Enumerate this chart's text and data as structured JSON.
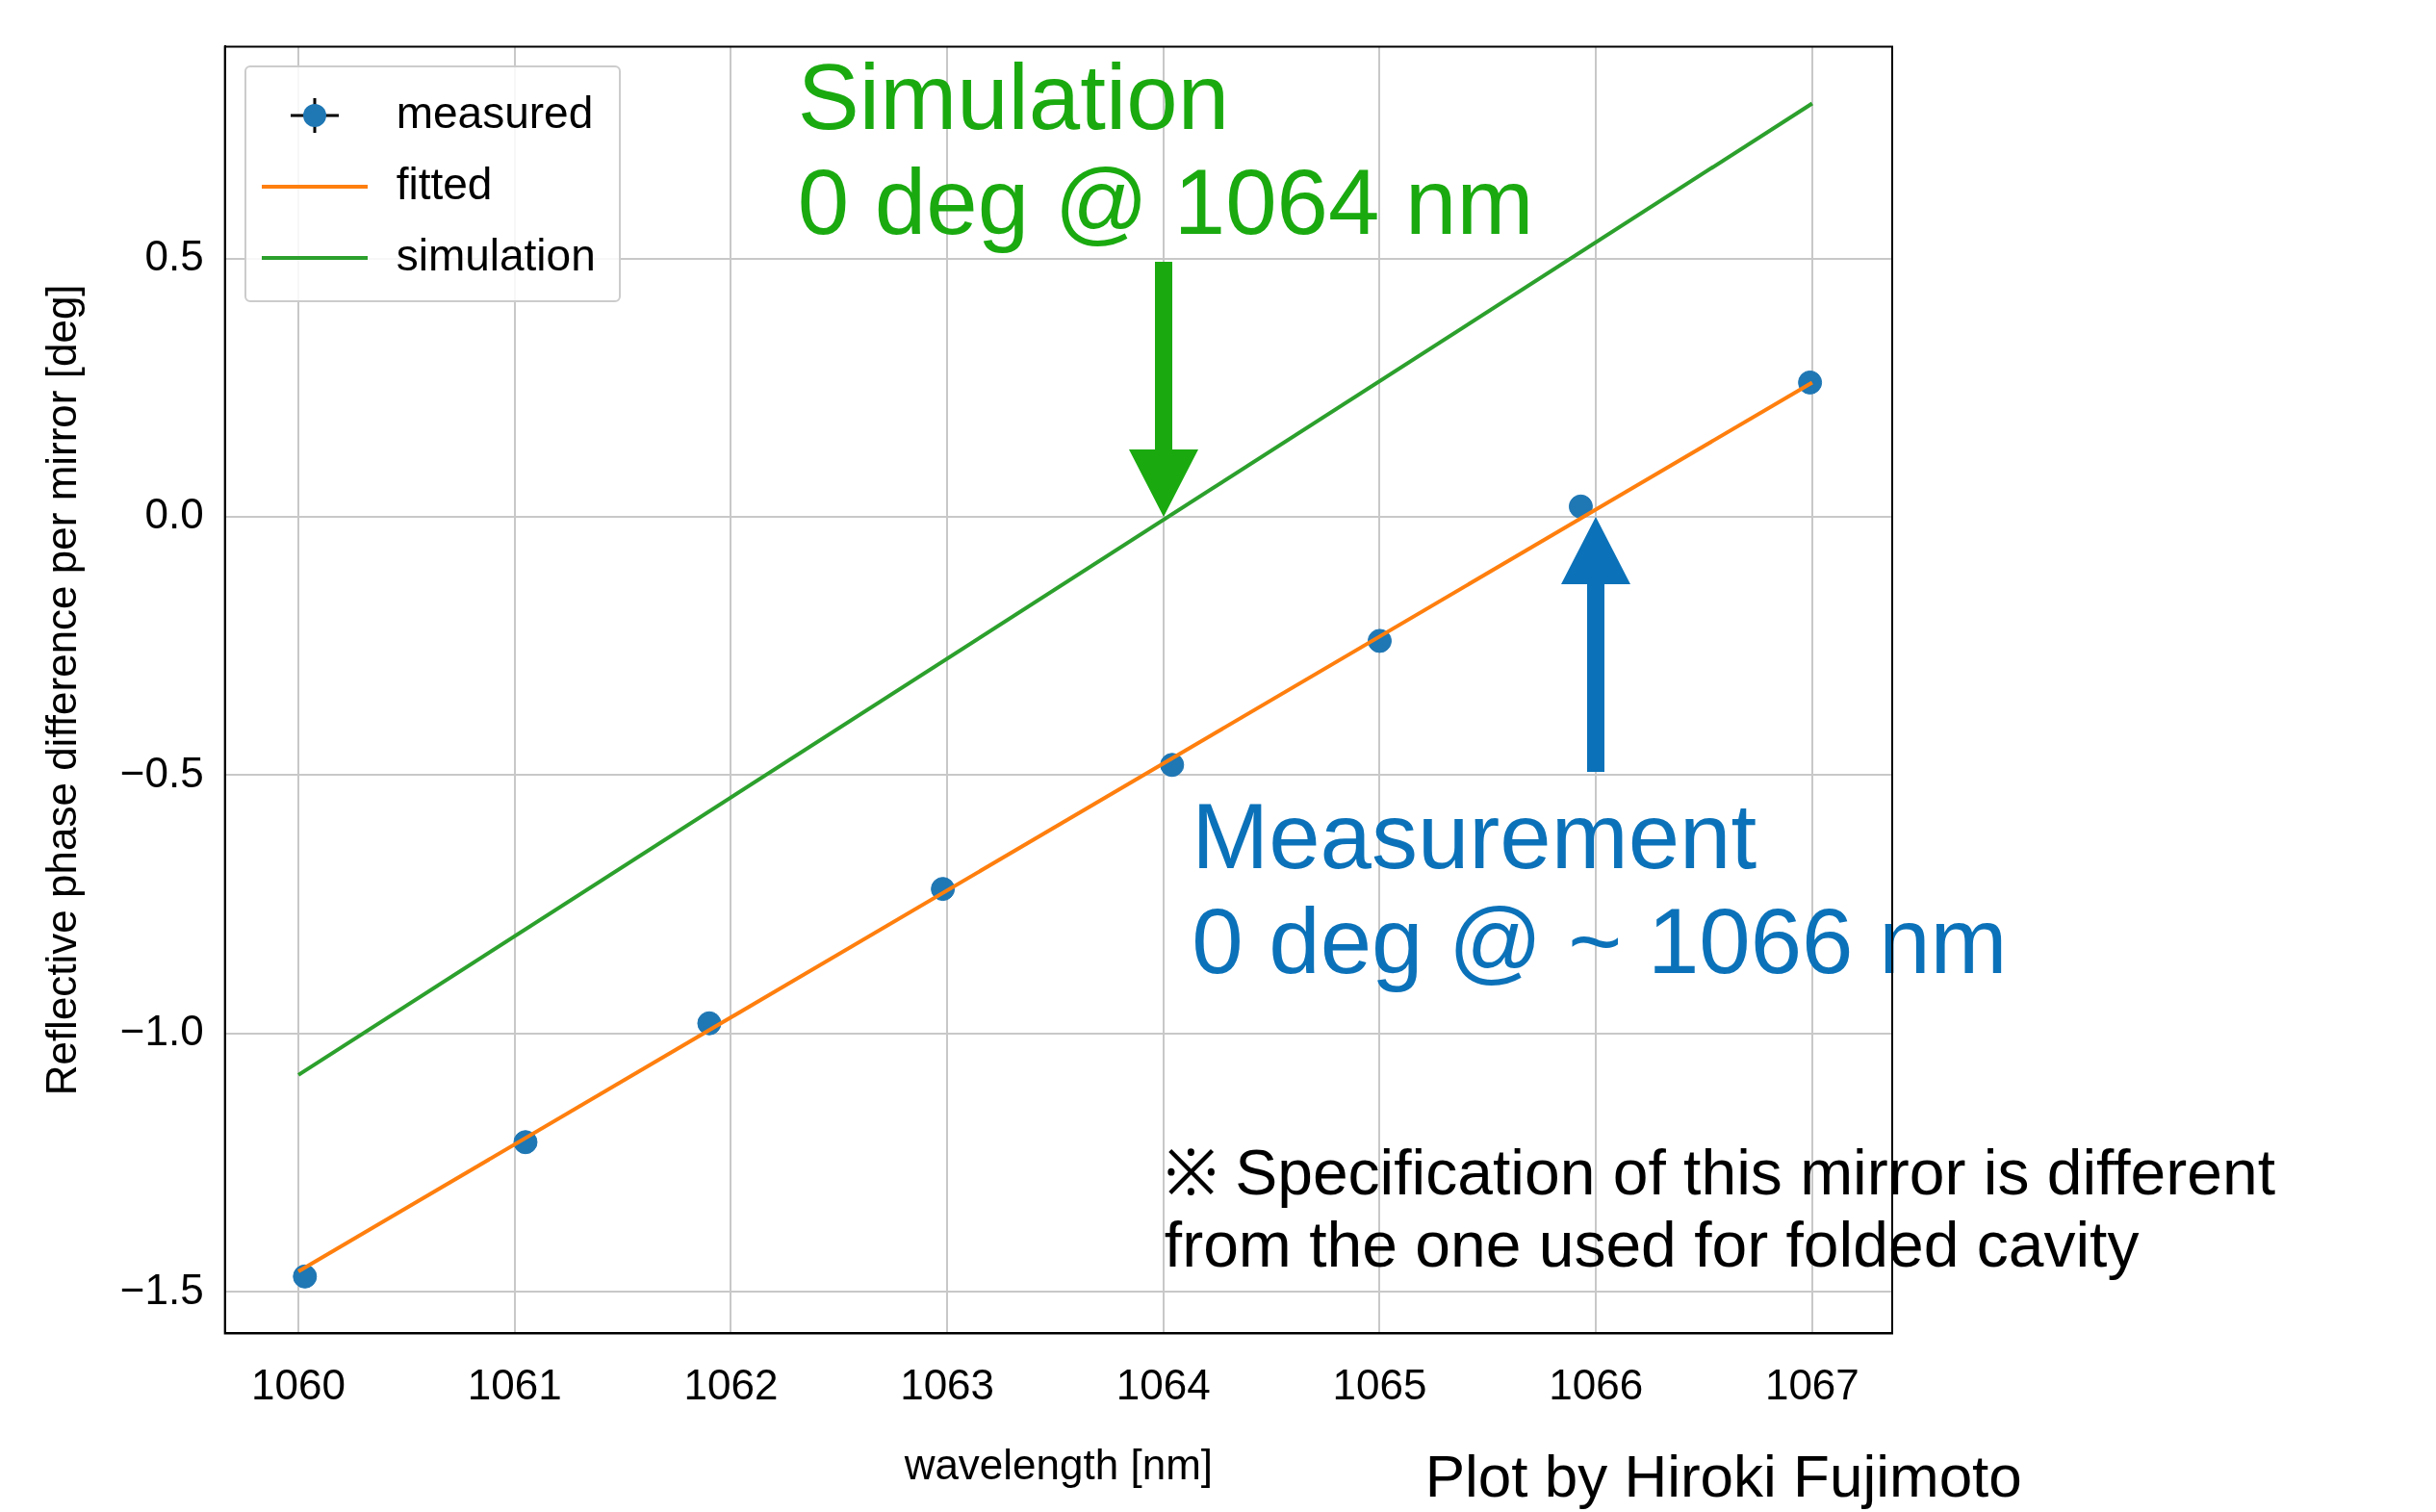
{
  "chart_data": {
    "type": "line",
    "xlabel": "wavelength [nm]",
    "ylabel": "Reflective phase difference per mirror [deg]",
    "xlim": [
      1059.66,
      1067.37
    ],
    "ylim": [
      -1.58,
      0.91
    ],
    "xticks": [
      1060,
      1061,
      1062,
      1063,
      1064,
      1065,
      1066,
      1067
    ],
    "yticks": [
      {
        "value": -1.5,
        "label": "−1.5"
      },
      {
        "value": -1.0,
        "label": "−1.0"
      },
      {
        "value": -0.5,
        "label": "−0.5"
      },
      {
        "value": 0,
        "label": "0.0"
      },
      {
        "value": 0.5,
        "label": "0.5"
      }
    ],
    "grid": true,
    "legend": "top left",
    "series": [
      {
        "name": "measured",
        "type": "scatter",
        "color": "#1f77b4",
        "x": [
          1060.03,
          1061.05,
          1061.9,
          1062.98,
          1064.04,
          1065.0,
          1065.93,
          1066.99
        ],
        "values": [
          -1.47,
          -1.21,
          -0.98,
          -0.72,
          -0.48,
          -0.24,
          0.02,
          0.26
        ]
      },
      {
        "name": "fitted",
        "type": "line",
        "color": "#ff7f0e",
        "x": [
          1060,
          1067
        ],
        "values": [
          -1.46,
          0.26
        ]
      },
      {
        "name": "simulation",
        "type": "line",
        "color": "#2ca02c",
        "x": [
          1060,
          1067
        ],
        "values": [
          -1.08,
          0.8
        ]
      }
    ],
    "annotations": [
      {
        "text": "Simulation\n0 deg @ 1064 nm",
        "x": 1064,
        "y": 0
      },
      {
        "text": "Measurement\n0 deg @ ~ 1066 nm",
        "x": 1066,
        "y": 0
      },
      "※ Specification of this mirror is different\nfrom the one used for folded cavity",
      "Plot by Hiroki Fujimoto"
    ]
  }
}
